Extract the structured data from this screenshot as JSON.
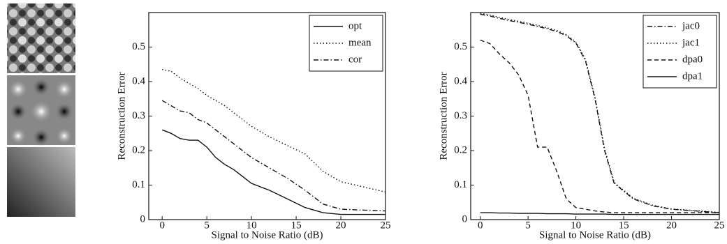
{
  "chart_data": [
    {
      "type": "line",
      "xlabel": "Signal to Noise Ratio (dB)",
      "ylabel": "Reconstruction Error",
      "x": [
        0,
        1,
        2,
        3,
        4,
        5,
        6,
        7,
        8,
        9,
        10,
        12,
        14,
        16,
        18,
        20,
        25
      ],
      "xlim": [
        -1.5,
        25
      ],
      "xticks": [
        0,
        5,
        10,
        15,
        20,
        25
      ],
      "ylim": [
        0,
        0.6
      ],
      "yticks": [
        0,
        0.1,
        0.2,
        0.3,
        0.4,
        0.5
      ],
      "legend": "top-right",
      "series": [
        {
          "name": "opt",
          "color": "#111111",
          "style": "solid",
          "values": [
            0.26,
            0.25,
            0.235,
            0.23,
            0.23,
            0.21,
            0.18,
            0.16,
            0.145,
            0.125,
            0.105,
            0.085,
            0.06,
            0.035,
            0.02,
            0.015,
            0.015
          ]
        },
        {
          "name": "mean",
          "color": "#111111",
          "style": "dotted",
          "values": [
            0.435,
            0.43,
            0.41,
            0.395,
            0.38,
            0.36,
            0.345,
            0.33,
            0.31,
            0.29,
            0.27,
            0.24,
            0.215,
            0.19,
            0.14,
            0.11,
            0.08
          ]
        },
        {
          "name": "cor",
          "color": "#111111",
          "style": "dashdot",
          "values": [
            0.345,
            0.33,
            0.315,
            0.31,
            0.29,
            0.28,
            0.26,
            0.24,
            0.22,
            0.2,
            0.18,
            0.15,
            0.12,
            0.085,
            0.045,
            0.03,
            0.025
          ]
        }
      ]
    },
    {
      "type": "line",
      "xlabel": "Signal to Noise Ratio (dB)",
      "ylabel": "Reconstruction Error",
      "x": [
        0,
        1,
        2,
        3,
        4,
        5,
        6,
        7,
        8,
        9,
        10,
        11,
        12,
        13,
        14,
        16,
        18,
        20,
        25
      ],
      "xlim": [
        -1,
        25
      ],
      "xticks": [
        0,
        5,
        10,
        15,
        20,
        25
      ],
      "ylim": [
        0,
        0.6
      ],
      "yticks": [
        0,
        0.1,
        0.2,
        0.3,
        0.4,
        0.5
      ],
      "legend": "top-right",
      "series": [
        {
          "name": "jac0",
          "color": "#111111",
          "style": "dashdot",
          "values": [
            0.595,
            0.59,
            0.583,
            0.577,
            0.572,
            0.566,
            0.56,
            0.553,
            0.545,
            0.533,
            0.512,
            0.46,
            0.35,
            0.2,
            0.105,
            0.06,
            0.04,
            0.03,
            0.02
          ]
        },
        {
          "name": "jac1",
          "color": "#111111",
          "style": "dotted",
          "values": [
            0.598,
            0.593,
            0.586,
            0.58,
            0.575,
            0.569,
            0.563,
            0.556,
            0.548,
            0.536,
            0.515,
            0.465,
            0.355,
            0.205,
            0.108,
            0.062,
            0.042,
            0.031,
            0.021
          ]
        },
        {
          "name": "dpa0",
          "color": "#111111",
          "style": "dashed",
          "values": [
            0.52,
            0.51,
            0.48,
            0.455,
            0.42,
            0.36,
            0.21,
            0.21,
            0.14,
            0.06,
            0.035,
            0.03,
            0.025,
            0.022,
            0.02,
            0.02,
            0.02,
            0.02,
            0.02
          ]
        },
        {
          "name": "dpa1",
          "color": "#111111",
          "style": "solid",
          "values": [
            0.02,
            0.02,
            0.019,
            0.019,
            0.018,
            0.018,
            0.018,
            0.017,
            0.017,
            0.017,
            0.016,
            0.016,
            0.016,
            0.016,
            0.015,
            0.015,
            0.015,
            0.015,
            0.015
          ]
        }
      ]
    }
  ]
}
